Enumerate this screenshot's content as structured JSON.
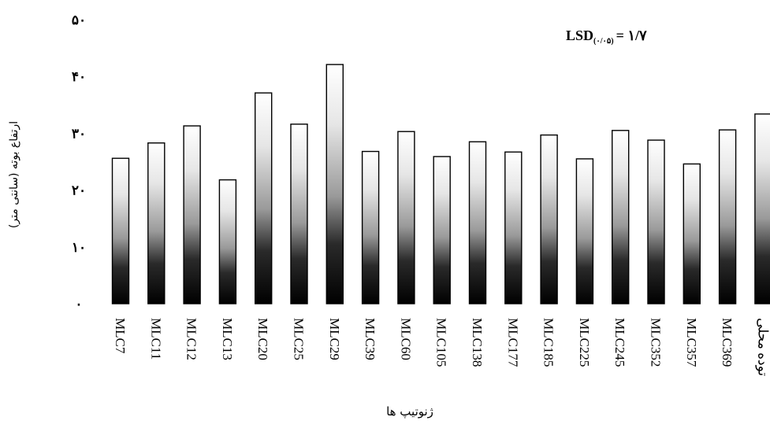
{
  "chart_data": {
    "type": "bar",
    "categories": [
      "MLC7",
      "MLC11",
      "MLC12",
      "MLC13",
      "MLC20",
      "MLC25",
      "MLC29",
      "MLC39",
      "MLC60",
      "MLC105",
      "MLC138",
      "MLC177",
      "MLC185",
      "MLC225",
      "MLC245",
      "MLC352",
      "MLC357",
      "MLC369",
      "توده محلی"
    ],
    "values": [
      25.6,
      28.3,
      31.3,
      21.8,
      37.1,
      31.6,
      42.1,
      26.8,
      30.3,
      25.9,
      28.5,
      26.7,
      29.7,
      25.5,
      30.5,
      28.8,
      24.6,
      30.6,
      33.4
    ],
    "ylim": [
      0,
      50
    ],
    "yticks": [
      0,
      10,
      20,
      30,
      40,
      50
    ],
    "ytick_labels": [
      "۰",
      "۱۰",
      "۲۰",
      "۳۰",
      "۴۰",
      "۵۰"
    ],
    "ylabel": "ارتفاع بوته (سانتی متر)",
    "xlabel": "ژنوتیپ ها",
    "annotation": {
      "main": "LSD",
      "sub": "(۰/۰۵)",
      "value": "= ۱/۷"
    },
    "grid": false,
    "legend": "none",
    "bar_gradient": {
      "top": "#ffffff",
      "middle": "#9a9a9a",
      "bottom": "#000000"
    }
  }
}
